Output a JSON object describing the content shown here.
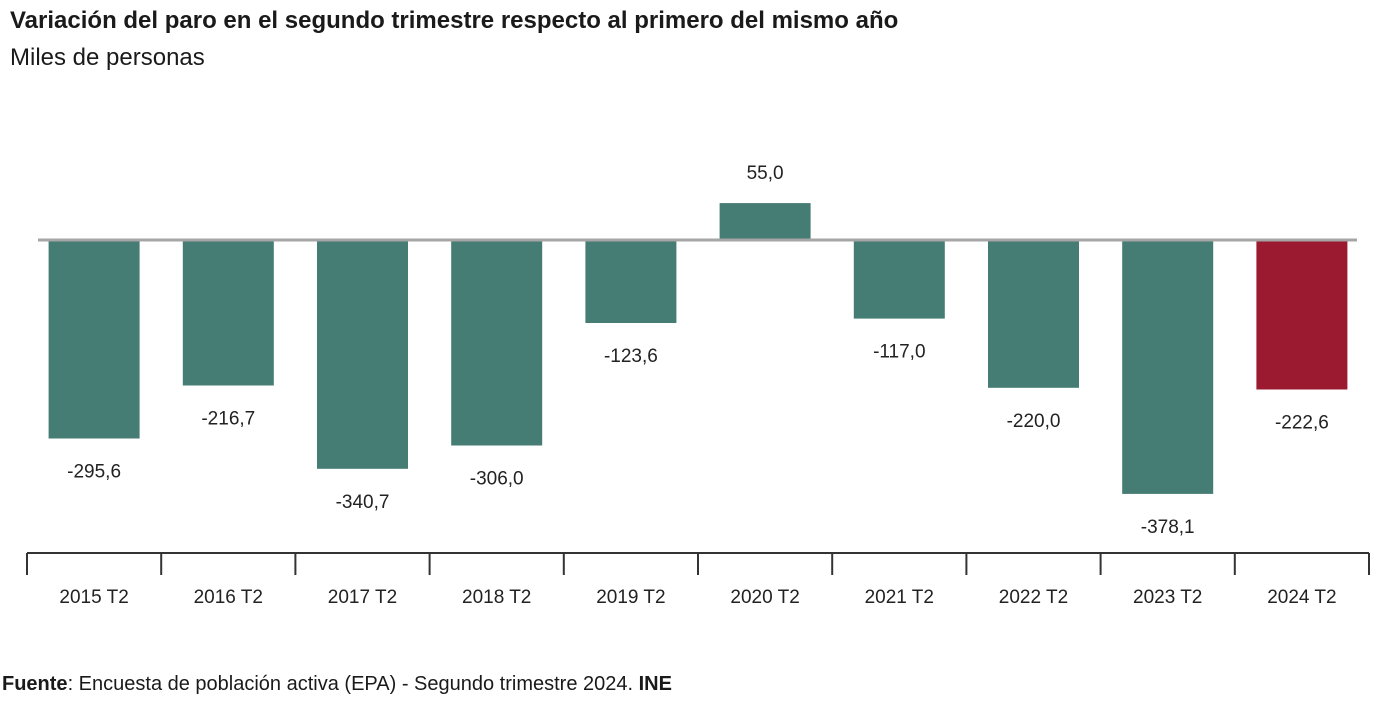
{
  "chart_data": {
    "type": "bar",
    "title": "Variación del paro en el segundo trimestre respecto al primero del mismo año",
    "subtitle": "Miles de personas",
    "categories": [
      "2015 T2",
      "2016 T2",
      "2017 T2",
      "2018 T2",
      "2019 T2",
      "2020 T2",
      "2021 T2",
      "2022 T2",
      "2023 T2",
      "2024 T2"
    ],
    "values": [
      -295.6,
      -216.7,
      -340.7,
      -306.0,
      -123.6,
      55.0,
      -117.0,
      -220.0,
      -378.1,
      -222.6
    ],
    "value_labels": [
      "-295,6",
      "-216,7",
      "-340,7",
      "-306,0",
      "-123,6",
      "55,0",
      "-117,0",
      "-220,0",
      "-378,1",
      "-222,6"
    ],
    "colors": {
      "default": "#457c74",
      "highlight": "#9b1a2f",
      "zero_line": "#a6a6a6",
      "axis": "#333333"
    },
    "highlight_index": 9,
    "xlabel": "",
    "ylabel": "",
    "ylim": [
      -400,
      60
    ]
  },
  "source": {
    "label": "Fuente",
    "text": ": Encuesta de población activa (EPA) - Segundo trimestre 2024. ",
    "org": "INE"
  }
}
